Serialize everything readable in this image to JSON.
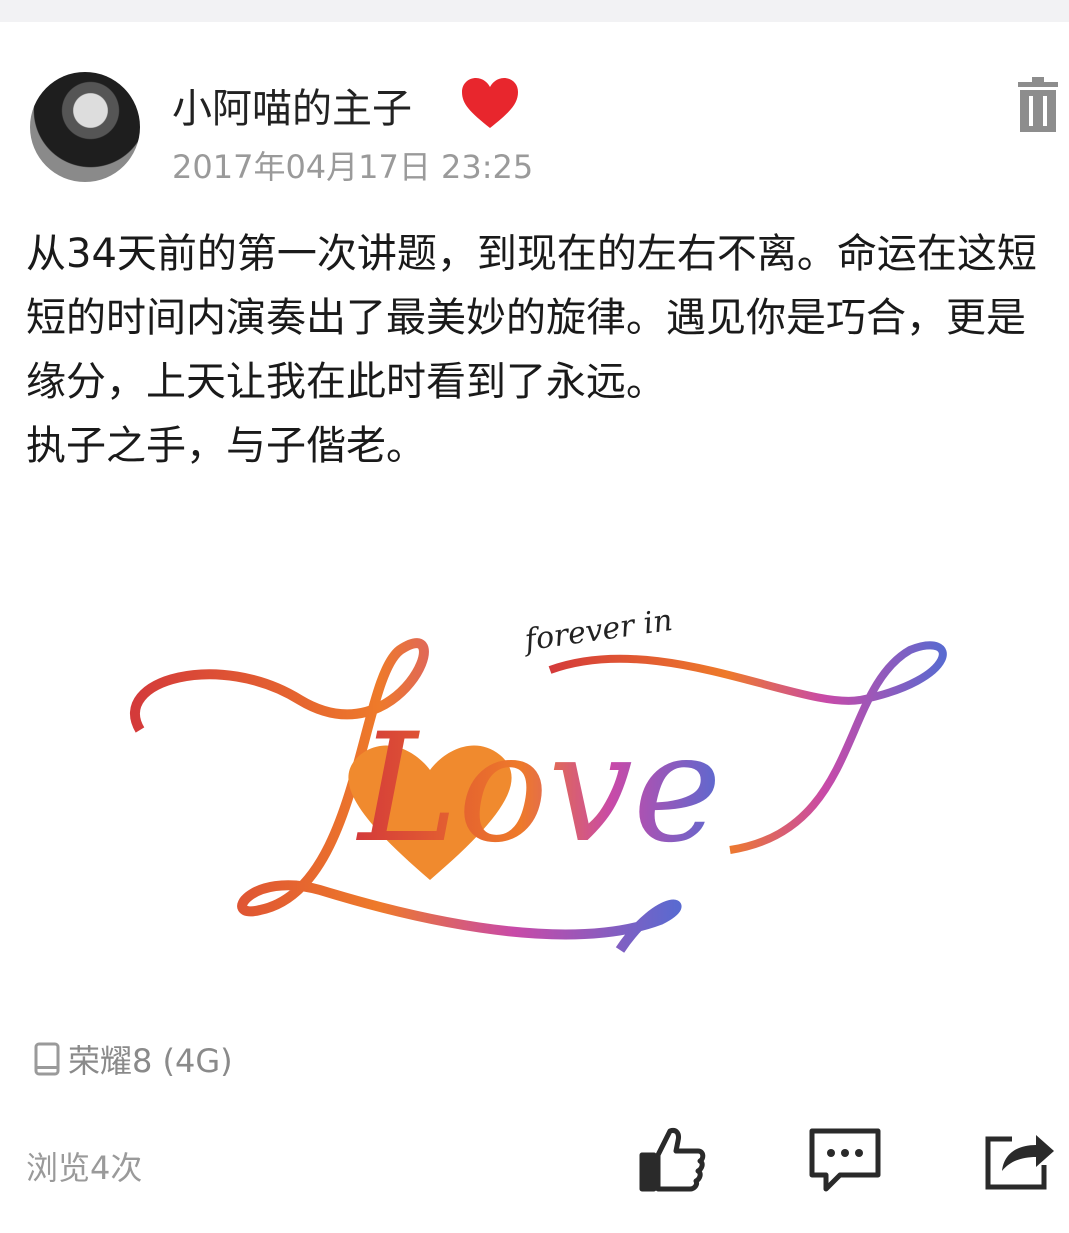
{
  "post": {
    "author": "小阿喵的主子",
    "time": "2017年04月17日 23:25",
    "paragraphs": [
      "从34天前的第一次讲题，到现在的左右不离。命运在这短短的时间内演奏出了最美妙的旋律。遇见你是巧合，更是缘分，上天让我在此时看到了永远。",
      "执子之手，与子偕老。"
    ],
    "image": {
      "subtext": "forever in",
      "text": "Love"
    },
    "device": "荣耀8 (4G)",
    "views": "浏览4次"
  }
}
